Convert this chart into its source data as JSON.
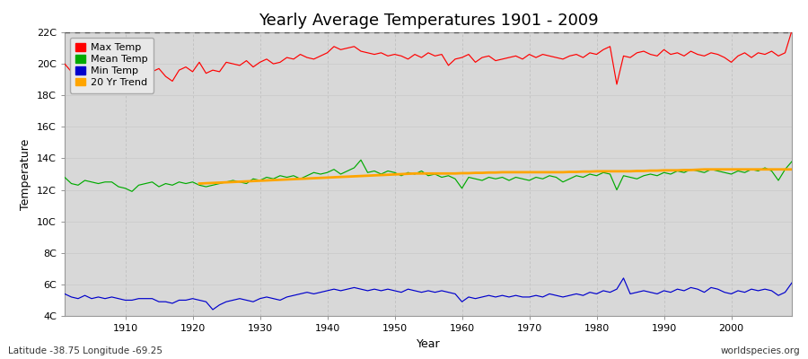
{
  "title": "Yearly Average Temperatures 1901 - 2009",
  "xlabel": "Year",
  "ylabel": "Temperature",
  "lat_lon_label": "Latitude -38.75 Longitude -69.25",
  "source_label": "worldspecies.org",
  "fig_bg_color": "#ffffff",
  "plot_bg_color": "#d8d8d8",
  "years": [
    1901,
    1902,
    1903,
    1904,
    1905,
    1906,
    1907,
    1908,
    1909,
    1910,
    1911,
    1912,
    1913,
    1914,
    1915,
    1916,
    1917,
    1918,
    1919,
    1920,
    1921,
    1922,
    1923,
    1924,
    1925,
    1926,
    1927,
    1928,
    1929,
    1930,
    1931,
    1932,
    1933,
    1934,
    1935,
    1936,
    1937,
    1938,
    1939,
    1940,
    1941,
    1942,
    1943,
    1944,
    1945,
    1946,
    1947,
    1948,
    1949,
    1950,
    1951,
    1952,
    1953,
    1954,
    1955,
    1956,
    1957,
    1958,
    1959,
    1960,
    1961,
    1962,
    1963,
    1964,
    1965,
    1966,
    1967,
    1968,
    1969,
    1970,
    1971,
    1972,
    1973,
    1974,
    1975,
    1976,
    1977,
    1978,
    1979,
    1980,
    1981,
    1982,
    1983,
    1984,
    1985,
    1986,
    1987,
    1988,
    1989,
    1990,
    1991,
    1992,
    1993,
    1994,
    1995,
    1996,
    1997,
    1998,
    1999,
    2000,
    2001,
    2002,
    2003,
    2004,
    2005,
    2006,
    2007,
    2008,
    2009
  ],
  "max_temp": [
    20.0,
    19.5,
    19.7,
    20.1,
    19.6,
    20.0,
    19.5,
    20.0,
    19.7,
    19.9,
    20.1,
    19.7,
    19.9,
    19.5,
    19.7,
    19.2,
    18.9,
    19.6,
    19.8,
    19.5,
    20.1,
    19.4,
    19.6,
    19.5,
    20.1,
    20.0,
    19.9,
    20.2,
    19.8,
    20.1,
    20.3,
    20.0,
    20.1,
    20.4,
    20.3,
    20.6,
    20.4,
    20.3,
    20.5,
    20.7,
    21.1,
    20.9,
    21.0,
    21.1,
    20.8,
    20.7,
    20.6,
    20.7,
    20.5,
    20.6,
    20.5,
    20.3,
    20.6,
    20.4,
    20.7,
    20.5,
    20.6,
    19.9,
    20.3,
    20.4,
    20.6,
    20.1,
    20.4,
    20.5,
    20.2,
    20.3,
    20.4,
    20.5,
    20.3,
    20.6,
    20.4,
    20.6,
    20.5,
    20.4,
    20.3,
    20.5,
    20.6,
    20.4,
    20.7,
    20.6,
    20.9,
    21.1,
    18.7,
    20.5,
    20.4,
    20.7,
    20.8,
    20.6,
    20.5,
    20.9,
    20.6,
    20.7,
    20.5,
    20.8,
    20.6,
    20.5,
    20.7,
    20.6,
    20.4,
    20.1,
    20.5,
    20.7,
    20.4,
    20.7,
    20.6,
    20.8,
    20.5,
    20.7,
    22.1
  ],
  "mean_temp": [
    12.8,
    12.4,
    12.3,
    12.6,
    12.5,
    12.4,
    12.5,
    12.5,
    12.2,
    12.1,
    11.9,
    12.3,
    12.4,
    12.5,
    12.2,
    12.4,
    12.3,
    12.5,
    12.4,
    12.5,
    12.3,
    12.2,
    12.3,
    12.4,
    12.5,
    12.6,
    12.5,
    12.4,
    12.7,
    12.6,
    12.8,
    12.7,
    12.9,
    12.8,
    12.9,
    12.7,
    12.9,
    13.1,
    13.0,
    13.1,
    13.3,
    13.0,
    13.2,
    13.4,
    13.9,
    13.1,
    13.2,
    13.0,
    13.2,
    13.1,
    12.9,
    13.1,
    13.0,
    13.2,
    12.9,
    13.0,
    12.8,
    12.9,
    12.7,
    12.1,
    12.8,
    12.7,
    12.6,
    12.8,
    12.7,
    12.8,
    12.6,
    12.8,
    12.7,
    12.6,
    12.8,
    12.7,
    12.9,
    12.8,
    12.5,
    12.7,
    12.9,
    12.8,
    13.0,
    12.9,
    13.1,
    13.0,
    12.0,
    12.9,
    12.8,
    12.7,
    12.9,
    13.0,
    12.9,
    13.1,
    13.0,
    13.2,
    13.1,
    13.3,
    13.2,
    13.1,
    13.3,
    13.2,
    13.1,
    13.0,
    13.2,
    13.1,
    13.3,
    13.2,
    13.4,
    13.2,
    12.6,
    13.3,
    13.8
  ],
  "min_temp": [
    5.4,
    5.2,
    5.1,
    5.3,
    5.1,
    5.2,
    5.1,
    5.2,
    5.1,
    5.0,
    5.0,
    5.1,
    5.1,
    5.1,
    4.9,
    4.9,
    4.8,
    5.0,
    5.0,
    5.1,
    5.0,
    4.9,
    4.4,
    4.7,
    4.9,
    5.0,
    5.1,
    5.0,
    4.9,
    5.1,
    5.2,
    5.1,
    5.0,
    5.2,
    5.3,
    5.4,
    5.5,
    5.4,
    5.5,
    5.6,
    5.7,
    5.6,
    5.7,
    5.8,
    5.7,
    5.6,
    5.7,
    5.6,
    5.7,
    5.6,
    5.5,
    5.7,
    5.6,
    5.5,
    5.6,
    5.5,
    5.6,
    5.5,
    5.4,
    4.9,
    5.2,
    5.1,
    5.2,
    5.3,
    5.2,
    5.3,
    5.2,
    5.3,
    5.2,
    5.2,
    5.3,
    5.2,
    5.4,
    5.3,
    5.2,
    5.3,
    5.4,
    5.3,
    5.5,
    5.4,
    5.6,
    5.5,
    5.7,
    6.4,
    5.4,
    5.5,
    5.6,
    5.5,
    5.4,
    5.6,
    5.5,
    5.7,
    5.6,
    5.8,
    5.7,
    5.5,
    5.8,
    5.7,
    5.5,
    5.4,
    5.6,
    5.5,
    5.7,
    5.6,
    5.7,
    5.6,
    5.3,
    5.5,
    6.1
  ],
  "trend_start_year": 1921,
  "trend_values": [
    12.4,
    12.42,
    12.44,
    12.46,
    12.48,
    12.5,
    12.52,
    12.54,
    12.56,
    12.58,
    12.6,
    12.62,
    12.64,
    12.66,
    12.68,
    12.7,
    12.72,
    12.74,
    12.76,
    12.78,
    12.8,
    12.82,
    12.84,
    12.86,
    12.88,
    12.9,
    12.92,
    12.94,
    12.96,
    12.98,
    13.0,
    13.02,
    13.04,
    13.04,
    13.04,
    13.04,
    13.04,
    13.04,
    13.04,
    13.06,
    13.06,
    13.08,
    13.08,
    13.1,
    13.1,
    13.12,
    13.12,
    13.12,
    13.12,
    13.12,
    13.12,
    13.12,
    13.12,
    13.12,
    13.12,
    13.14,
    13.14,
    13.16,
    13.16,
    13.18,
    13.18,
    13.18,
    13.18,
    13.18,
    13.18,
    13.2,
    13.2,
    13.22,
    13.22,
    13.24,
    13.24,
    13.24,
    13.26,
    13.26,
    13.28,
    13.3,
    13.3,
    13.3,
    13.3,
    13.3,
    13.3,
    13.3,
    13.3,
    13.3,
    13.3,
    13.3,
    13.3,
    13.3,
    13.3
  ],
  "ylim": [
    4,
    22
  ],
  "yticks": [
    4,
    6,
    8,
    10,
    12,
    14,
    16,
    18,
    20,
    22
  ],
  "ytick_labels": [
    "4C",
    "6C",
    "8C",
    "10C",
    "12C",
    "14C",
    "16C",
    "18C",
    "20C",
    "22C"
  ],
  "max_color": "#ff0000",
  "mean_color": "#00aa00",
  "min_color": "#0000cc",
  "trend_color": "#ffa500",
  "vgrid_color": "#bbbbbb",
  "hgrid_color": "#cccccc",
  "dotted_line_y": 22,
  "dotted_line_color": "#555555",
  "legend_bg": "#e8e8e8",
  "xtick_years": [
    1910,
    1920,
    1930,
    1940,
    1950,
    1960,
    1970,
    1980,
    1990,
    2000
  ]
}
